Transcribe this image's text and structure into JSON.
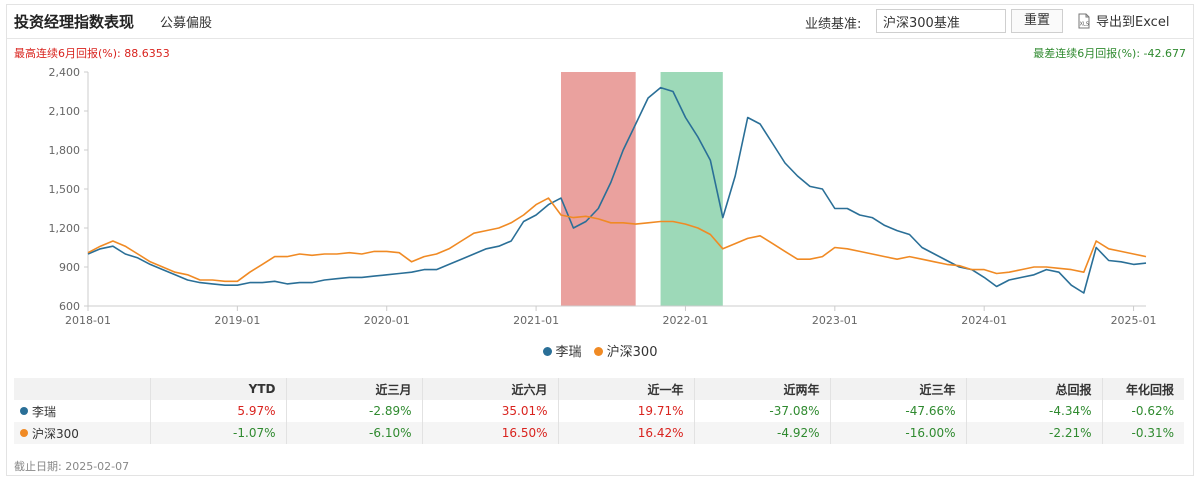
{
  "header": {
    "title": "投资经理指数表现",
    "fund_type": "公募偏股",
    "benchmark_label": "业绩基准:",
    "benchmark_value": "沪深300基准",
    "reset_label": "重置",
    "export_label": "导出到Excel",
    "export_icon": "excel-file-icon"
  },
  "stats": {
    "best": "最高连续6月回报(%): 88.6353",
    "worst": "最差连续6月回报(%): -42.677"
  },
  "colors": {
    "manager": "#2a6f97",
    "benchmark": "#f08a24",
    "best_band": "#d9534f",
    "worst_band": "#3cb371",
    "positive": "#d9231e",
    "negative": "#2f8a2f"
  },
  "chart_data": {
    "type": "line",
    "x_ticks": [
      "2018-01",
      "2019-01",
      "2020-01",
      "2021-01",
      "2022-01",
      "2023-01",
      "2024-01",
      "2025-01"
    ],
    "y_ticks": [
      "600",
      "900",
      "1,200",
      "1,500",
      "1,800",
      "2,100",
      "2,400"
    ],
    "ylim": [
      600,
      2400
    ],
    "xlim": [
      "2018-01",
      "2025-02"
    ],
    "grid": false,
    "legend_position": "bottom",
    "highlight_best_6m": [
      "2021-03",
      "2021-09"
    ],
    "highlight_worst_6m": [
      "2021-11",
      "2022-04"
    ],
    "series": [
      {
        "name": "李瑞",
        "color": "#2a6f97",
        "x": [
          "2018-01",
          "2018-02",
          "2018-03",
          "2018-04",
          "2018-05",
          "2018-06",
          "2018-07",
          "2018-08",
          "2018-09",
          "2018-10",
          "2018-11",
          "2018-12",
          "2019-01",
          "2019-02",
          "2019-03",
          "2019-04",
          "2019-05",
          "2019-06",
          "2019-07",
          "2019-08",
          "2019-09",
          "2019-10",
          "2019-11",
          "2019-12",
          "2020-01",
          "2020-02",
          "2020-03",
          "2020-04",
          "2020-05",
          "2020-06",
          "2020-07",
          "2020-08",
          "2020-09",
          "2020-10",
          "2020-11",
          "2020-12",
          "2021-01",
          "2021-02",
          "2021-03",
          "2021-04",
          "2021-05",
          "2021-06",
          "2021-07",
          "2021-08",
          "2021-09",
          "2021-10",
          "2021-11",
          "2021-12",
          "2022-01",
          "2022-02",
          "2022-03",
          "2022-04",
          "2022-05",
          "2022-06",
          "2022-07",
          "2022-08",
          "2022-09",
          "2022-10",
          "2022-11",
          "2022-12",
          "2023-01",
          "2023-02",
          "2023-03",
          "2023-04",
          "2023-05",
          "2023-06",
          "2023-07",
          "2023-08",
          "2023-09",
          "2023-10",
          "2023-11",
          "2023-12",
          "2024-01",
          "2024-02",
          "2024-03",
          "2024-04",
          "2024-05",
          "2024-06",
          "2024-07",
          "2024-08",
          "2024-09",
          "2024-10",
          "2024-11",
          "2024-12",
          "2025-01",
          "2025-02"
        ],
        "values": [
          1000,
          1040,
          1060,
          1000,
          970,
          920,
          880,
          840,
          800,
          780,
          770,
          760,
          760,
          780,
          780,
          790,
          770,
          780,
          780,
          800,
          810,
          820,
          820,
          830,
          840,
          850,
          860,
          880,
          880,
          920,
          960,
          1000,
          1040,
          1060,
          1100,
          1250,
          1300,
          1380,
          1430,
          1200,
          1250,
          1350,
          1550,
          1800,
          2000,
          2200,
          2280,
          2250,
          2050,
          1900,
          1720,
          1280,
          1600,
          2050,
          2000,
          1850,
          1700,
          1600,
          1520,
          1500,
          1350,
          1350,
          1300,
          1280,
          1220,
          1180,
          1150,
          1050,
          1000,
          950,
          900,
          880,
          820,
          750,
          800,
          820,
          840,
          880,
          860,
          760,
          700,
          1050,
          950,
          940,
          920,
          930
        ]
      },
      {
        "name": "沪深300",
        "color": "#f08a24",
        "x": [
          "2018-01",
          "2018-02",
          "2018-03",
          "2018-04",
          "2018-05",
          "2018-06",
          "2018-07",
          "2018-08",
          "2018-09",
          "2018-10",
          "2018-11",
          "2018-12",
          "2019-01",
          "2019-02",
          "2019-03",
          "2019-04",
          "2019-05",
          "2019-06",
          "2019-07",
          "2019-08",
          "2019-09",
          "2019-10",
          "2019-11",
          "2019-12",
          "2020-01",
          "2020-02",
          "2020-03",
          "2020-04",
          "2020-05",
          "2020-06",
          "2020-07",
          "2020-08",
          "2020-09",
          "2020-10",
          "2020-11",
          "2020-12",
          "2021-01",
          "2021-02",
          "2021-03",
          "2021-04",
          "2021-05",
          "2021-06",
          "2021-07",
          "2021-08",
          "2021-09",
          "2021-10",
          "2021-11",
          "2021-12",
          "2022-01",
          "2022-02",
          "2022-03",
          "2022-04",
          "2022-05",
          "2022-06",
          "2022-07",
          "2022-08",
          "2022-09",
          "2022-10",
          "2022-11",
          "2022-12",
          "2023-01",
          "2023-02",
          "2023-03",
          "2023-04",
          "2023-05",
          "2023-06",
          "2023-07",
          "2023-08",
          "2023-09",
          "2023-10",
          "2023-11",
          "2023-12",
          "2024-01",
          "2024-02",
          "2024-03",
          "2024-04",
          "2024-05",
          "2024-06",
          "2024-07",
          "2024-08",
          "2024-09",
          "2024-10",
          "2024-11",
          "2024-12",
          "2025-01",
          "2025-02"
        ],
        "values": [
          1010,
          1060,
          1100,
          1060,
          1000,
          940,
          900,
          860,
          840,
          800,
          800,
          790,
          790,
          860,
          920,
          980,
          980,
          1000,
          990,
          1000,
          1000,
          1010,
          1000,
          1020,
          1020,
          1010,
          940,
          980,
          1000,
          1040,
          1100,
          1160,
          1180,
          1200,
          1240,
          1300,
          1380,
          1430,
          1300,
          1280,
          1290,
          1270,
          1240,
          1240,
          1230,
          1240,
          1250,
          1250,
          1230,
          1200,
          1150,
          1040,
          1080,
          1120,
          1140,
          1080,
          1020,
          960,
          960,
          980,
          1050,
          1040,
          1020,
          1000,
          980,
          960,
          980,
          960,
          940,
          920,
          910,
          880,
          880,
          850,
          860,
          880,
          900,
          900,
          890,
          880,
          860,
          1100,
          1040,
          1020,
          1000,
          980
        ]
      }
    ]
  },
  "table": {
    "headers": [
      "",
      "YTD",
      "近三月",
      "近六月",
      "近一年",
      "近两年",
      "近三年",
      "总回报",
      "年化回报"
    ],
    "rows": [
      {
        "name": "李瑞",
        "values": [
          "5.97%",
          "-2.89%",
          "35.01%",
          "19.71%",
          "-37.08%",
          "-47.66%",
          "-4.34%",
          "-0.62%"
        ]
      },
      {
        "name": "沪深300",
        "values": [
          "-1.07%",
          "-6.10%",
          "16.50%",
          "16.42%",
          "-4.92%",
          "-16.00%",
          "-2.21%",
          "-0.31%"
        ]
      }
    ]
  },
  "footnote": "截止日期: 2025-02-07"
}
